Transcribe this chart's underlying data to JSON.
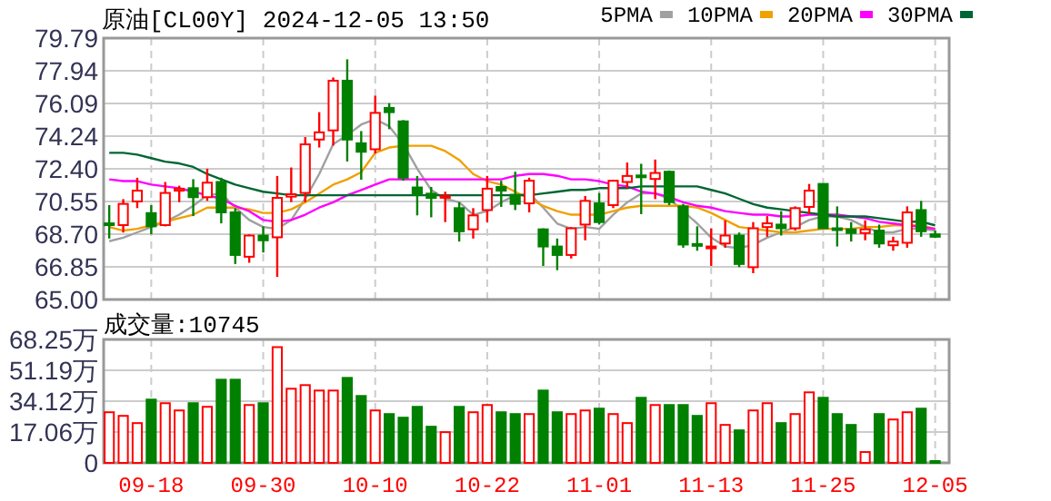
{
  "chart_data": [
    {
      "type": "candlestick",
      "title": "原油[CL00Y] 2024-12-05 13:50",
      "categories": [
        null,
        null,
        null,
        null,
        null,
        null,
        null,
        null,
        null,
        null,
        null,
        null,
        null,
        null,
        null,
        null,
        null,
        null,
        null,
        null,
        null,
        null,
        null,
        null,
        null,
        null,
        null,
        null,
        null,
        null,
        null,
        null,
        null,
        null,
        null,
        null,
        null,
        null,
        null,
        null,
        null,
        null,
        null,
        null,
        null,
        null,
        null,
        null,
        null,
        null,
        null,
        null,
        null,
        null,
        null,
        null,
        null,
        null,
        null,
        null
      ],
      "ohlc": [
        [
          69.31,
          70.34,
          68.45,
          69.24
        ],
        [
          69.21,
          70.68,
          68.79,
          70.41
        ],
        [
          70.55,
          71.89,
          70.17,
          71.16
        ],
        [
          69.89,
          70.34,
          68.69,
          69.14
        ],
        [
          69.21,
          71.65,
          69.14,
          71.03
        ],
        [
          71.16,
          71.44,
          70.51,
          71.27
        ],
        [
          71.3,
          71.81,
          69.72,
          70.79
        ],
        [
          70.79,
          72.4,
          70.58,
          71.61
        ],
        [
          71.65,
          71.89,
          69.31,
          69.93
        ],
        [
          69.93,
          70.17,
          67.01,
          67.52
        ],
        [
          67.42,
          68.69,
          67.08,
          68.62
        ],
        [
          68.62,
          69.14,
          67.66,
          68.35
        ],
        [
          68.52,
          71.99,
          66.28,
          70.75
        ],
        [
          70.82,
          72.47,
          70.51,
          70.96
        ],
        [
          71.03,
          74.19,
          70.51,
          73.78
        ],
        [
          74.05,
          75.6,
          73.6,
          74.46
        ],
        [
          74.57,
          77.56,
          73.71,
          77.38
        ],
        [
          77.38,
          78.59,
          72.81,
          74.05
        ],
        [
          73.84,
          74.53,
          71.78,
          73.36
        ],
        [
          73.5,
          76.53,
          73.26,
          75.56
        ],
        [
          75.84,
          76.11,
          74.64,
          75.6
        ],
        [
          75.08,
          75.15,
          71.72,
          71.89
        ],
        [
          71.34,
          71.99,
          69.76,
          70.93
        ],
        [
          70.99,
          71.37,
          69.65,
          70.75
        ],
        [
          70.79,
          71.1,
          69.38,
          70.86
        ],
        [
          70.17,
          70.51,
          68.28,
          68.86
        ],
        [
          68.97,
          70.17,
          68.45,
          69.76
        ],
        [
          70.06,
          71.99,
          69.38,
          71.27
        ],
        [
          71.37,
          71.72,
          70.24,
          71.16
        ],
        [
          70.93,
          72.23,
          70.06,
          70.41
        ],
        [
          70.44,
          71.89,
          69.93,
          71.72
        ],
        [
          68.97,
          69.03,
          66.9,
          68.0
        ],
        [
          68.0,
          68.45,
          66.66,
          67.52
        ],
        [
          67.52,
          69.1,
          67.32,
          69.03
        ],
        [
          69.24,
          70.86,
          68.35,
          70.58
        ],
        [
          70.44,
          71.03,
          69.24,
          69.38
        ],
        [
          70.34,
          71.78,
          70.17,
          71.72
        ],
        [
          71.65,
          72.75,
          71.3,
          71.99
        ],
        [
          72.02,
          72.68,
          69.83,
          71.95
        ],
        [
          71.82,
          72.92,
          70.68,
          72.16
        ],
        [
          72.23,
          72.3,
          70.34,
          70.51
        ],
        [
          70.27,
          70.41,
          67.93,
          68.11
        ],
        [
          68.14,
          69.14,
          67.76,
          68.07
        ],
        [
          67.93,
          69.03,
          66.9,
          68.0
        ],
        [
          68.17,
          69.48,
          67.93,
          68.62
        ],
        [
          68.62,
          68.79,
          66.83,
          67.01
        ],
        [
          66.83,
          69.38,
          66.49,
          69.03
        ],
        [
          69.1,
          69.72,
          68.55,
          69.31
        ],
        [
          69.24,
          70.0,
          68.62,
          69.03
        ],
        [
          69.03,
          70.27,
          68.9,
          70.17
        ],
        [
          70.24,
          71.54,
          69.83,
          71.16
        ],
        [
          71.54,
          71.54,
          69.03,
          69.03
        ],
        [
          69.03,
          70.27,
          68.0,
          68.97
        ],
        [
          68.97,
          69.38,
          68.28,
          68.76
        ],
        [
          68.76,
          69.48,
          68.35,
          68.97
        ],
        [
          68.9,
          69.24,
          67.93,
          68.17
        ],
        [
          68.07,
          68.55,
          67.76,
          68.28
        ],
        [
          68.21,
          70.27,
          67.93,
          69.93
        ],
        [
          70.06,
          70.58,
          68.55,
          68.86
        ],
        [
          68.69,
          68.9,
          68.48,
          68.55
        ]
      ],
      "colors": [
        "#008000",
        "#ff0000",
        "#ff0000",
        "#008000",
        "#ff0000",
        "#ff0000",
        "#008000",
        "#ff0000",
        "#008000",
        "#008000",
        "#ff0000",
        "#008000",
        "#ff0000",
        "#ff0000",
        "#ff0000",
        "#ff0000",
        "#ff0000",
        "#008000",
        "#008000",
        "#ff0000",
        "#008000",
        "#008000",
        "#008000",
        "#008000",
        "#ff0000",
        "#008000",
        "#ff0000",
        "#ff0000",
        "#008000",
        "#008000",
        "#ff0000",
        "#008000",
        "#008000",
        "#ff0000",
        "#ff0000",
        "#008000",
        "#ff0000",
        "#ff0000",
        "#008000",
        "#ff0000",
        "#008000",
        "#008000",
        "#008000",
        "#ff0000",
        "#ff0000",
        "#008000",
        "#ff0000",
        "#ff0000",
        "#008000",
        "#ff0000",
        "#ff0000",
        "#008000",
        "#008000",
        "#008000",
        "#ff0000",
        "#008000",
        "#ff0000",
        "#ff0000",
        "#008000",
        "#008000"
      ],
      "series": [
        {
          "name": "5PMA",
          "type": "line",
          "color": "#a0a0a0",
          "values": [
            68.3,
            68.5,
            68.8,
            69.1,
            69.4,
            69.8,
            70.3,
            70.9,
            71.0,
            70.2,
            69.5,
            69.1,
            69.0,
            69.5,
            70.7,
            72.1,
            73.8,
            74.3,
            74.9,
            75.2,
            74.8,
            73.8,
            72.4,
            71.2,
            70.7,
            70.5,
            69.8,
            70.0,
            70.5,
            70.9,
            71.0,
            70.2,
            69.3,
            69.0,
            69.1,
            69.0,
            69.8,
            70.5,
            71.0,
            71.0,
            70.7,
            70.0,
            69.3,
            68.5,
            68.0,
            67.9,
            68.1,
            68.5,
            68.8,
            69.1,
            69.5,
            69.7,
            69.7,
            69.5,
            69.1,
            68.8,
            68.8,
            69.0,
            69.0,
            68.9
          ]
        },
        {
          "name": "10PMA",
          "type": "line",
          "color": "#f0a000",
          "values": [
            69.1,
            68.9,
            69.0,
            69.2,
            69.4,
            69.6,
            69.8,
            70.2,
            70.2,
            70.2,
            70.1,
            69.9,
            69.9,
            70.1,
            70.5,
            71.0,
            71.5,
            71.8,
            72.2,
            73.3,
            73.6,
            73.7,
            73.7,
            73.7,
            73.4,
            72.9,
            72.1,
            71.7,
            71.5,
            71.1,
            70.7,
            70.3,
            70.0,
            69.8,
            69.8,
            69.8,
            70.0,
            70.2,
            70.3,
            70.3,
            70.3,
            70.3,
            70.2,
            69.9,
            69.5,
            69.1,
            69.0,
            68.9,
            68.8,
            68.8,
            68.9,
            69.0,
            69.0,
            69.0,
            69.1,
            69.1,
            69.2,
            69.2,
            69.2,
            69.0
          ]
        },
        {
          "name": "20PMA",
          "type": "line",
          "color": "#ff00ff",
          "values": [
            71.8,
            71.7,
            71.7,
            71.5,
            71.4,
            71.3,
            71.1,
            70.9,
            70.7,
            70.3,
            70.0,
            69.5,
            69.4,
            69.5,
            69.8,
            70.2,
            70.5,
            70.9,
            71.2,
            71.5,
            71.8,
            71.8,
            71.8,
            71.8,
            71.8,
            71.8,
            71.8,
            71.8,
            71.8,
            72.0,
            72.1,
            72.1,
            72.0,
            71.8,
            71.8,
            71.7,
            71.5,
            71.4,
            71.1,
            71.0,
            70.8,
            70.5,
            70.3,
            70.2,
            70.0,
            69.9,
            69.8,
            69.8,
            69.7,
            69.7,
            69.8,
            69.8,
            69.8,
            69.7,
            69.6,
            69.4,
            69.3,
            69.2,
            69.1,
            69.0
          ]
        },
        {
          "name": "30PMA",
          "type": "line",
          "color": "#006633",
          "values": [
            73.3,
            73.3,
            73.2,
            73.0,
            72.8,
            72.7,
            72.5,
            72.1,
            71.8,
            71.5,
            71.3,
            71.1,
            71.0,
            70.9,
            70.9,
            70.9,
            70.9,
            70.9,
            70.9,
            70.9,
            70.9,
            70.9,
            70.9,
            70.9,
            70.9,
            70.9,
            70.9,
            70.9,
            70.9,
            70.9,
            70.9,
            71.0,
            71.1,
            71.2,
            71.2,
            71.3,
            71.3,
            71.3,
            71.4,
            71.4,
            71.4,
            71.4,
            71.4,
            71.2,
            71.0,
            70.7,
            70.4,
            70.2,
            70.1,
            70.0,
            69.9,
            69.8,
            69.7,
            69.7,
            69.7,
            69.6,
            69.5,
            69.4,
            69.4,
            69.2
          ]
        }
      ],
      "ylim": [
        65,
        79.79
      ],
      "yticks": [
        {
          "value": 65,
          "label": "65.00"
        },
        66.85,
        {
          "value": 68.7,
          "label": "68.70"
        },
        70.55,
        {
          "value": 72.4,
          "label": "72.40"
        },
        74.24,
        76.09,
        77.94,
        79.79
      ],
      "grid": true,
      "legend": "top right",
      "tick_labels": "y"
    },
    {
      "type": "bar",
      "title": "成交量:10745",
      "categories": [
        null,
        null,
        null,
        "09-18",
        null,
        null,
        null,
        null,
        null,
        null,
        null,
        "09-30",
        null,
        null,
        null,
        null,
        null,
        null,
        null,
        "10-10",
        null,
        null,
        null,
        null,
        null,
        null,
        null,
        "10-22",
        null,
        null,
        null,
        null,
        null,
        null,
        null,
        "11-01",
        null,
        null,
        null,
        null,
        null,
        null,
        null,
        "11-13",
        null,
        null,
        null,
        null,
        null,
        null,
        null,
        "11-25",
        null,
        null,
        null,
        null,
        null,
        null,
        null,
        "12-05"
      ],
      "values": [
        28,
        26,
        22,
        35,
        33,
        29,
        33,
        31,
        46,
        46,
        32,
        33,
        64,
        41,
        43,
        40,
        40,
        47,
        37,
        29,
        27,
        25,
        31,
        20,
        17,
        31,
        28,
        32,
        28,
        27,
        27,
        40,
        28,
        27,
        29,
        30,
        27,
        22,
        36,
        32,
        32,
        32,
        26,
        33,
        21,
        18,
        29,
        33,
        22,
        27,
        39,
        36,
        27,
        21,
        6,
        27,
        24,
        28,
        30,
        1
      ],
      "colors": [
        "#ff0000",
        "#ff0000",
        "#ff0000",
        "#008000",
        "#ff0000",
        "#ff0000",
        "#008000",
        "#ff0000",
        "#008000",
        "#008000",
        "#ff0000",
        "#008000",
        "#ff0000",
        "#ff0000",
        "#ff0000",
        "#ff0000",
        "#ff0000",
        "#008000",
        "#008000",
        "#ff0000",
        "#008000",
        "#008000",
        "#008000",
        "#008000",
        "#ff0000",
        "#008000",
        "#ff0000",
        "#ff0000",
        "#008000",
        "#008000",
        "#ff0000",
        "#008000",
        "#008000",
        "#ff0000",
        "#ff0000",
        "#008000",
        "#ff0000",
        "#ff0000",
        "#008000",
        "#ff0000",
        "#008000",
        "#008000",
        "#008000",
        "#ff0000",
        "#ff0000",
        "#008000",
        "#ff0000",
        "#ff0000",
        "#008000",
        "#ff0000",
        "#ff0000",
        "#008000",
        "#008000",
        "#008000",
        "#ff0000",
        "#008000",
        "#ff0000",
        "#ff0000",
        "#008000",
        "#008000"
      ],
      "ylim": [
        0,
        68.25
      ],
      "yticks": [
        0,
        {
          "value": 17.06,
          "label": "17.06万"
        },
        {
          "value": 34.12,
          "label": "34.12万"
        },
        {
          "value": 51.19,
          "label": "51.19万"
        },
        {
          "value": 68.25,
          "label": "68.25万"
        }
      ],
      "grid": true
    }
  ]
}
